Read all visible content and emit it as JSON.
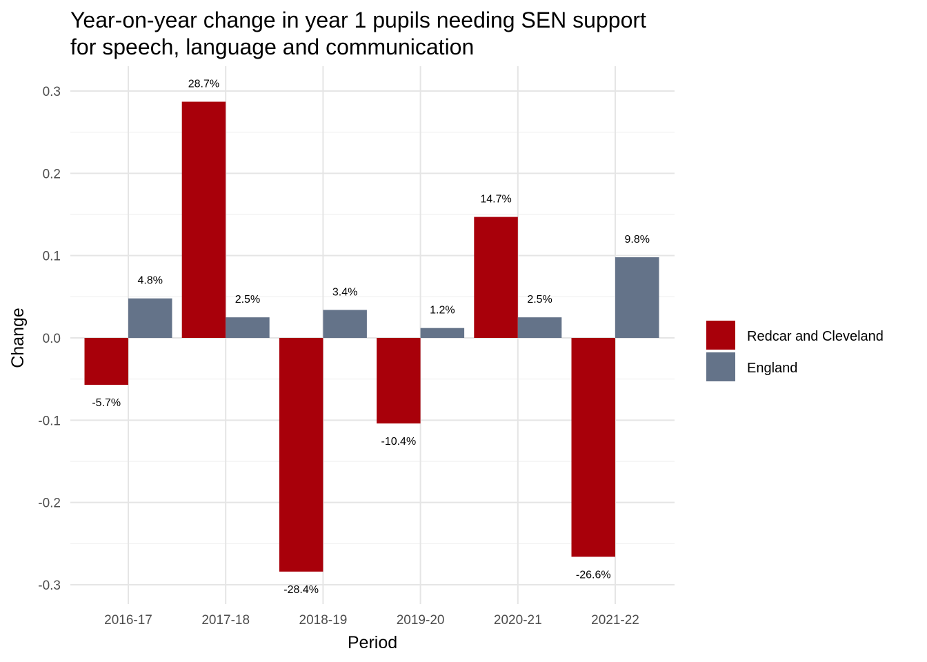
{
  "chart_data": {
    "type": "bar",
    "title_lines": [
      "Year-on-year change in year 1 pupils needing SEN support",
      "for speech, language and communication"
    ],
    "xlabel": "Period",
    "ylabel": "Change",
    "categories": [
      "2016-17",
      "2017-18",
      "2018-19",
      "2019-20",
      "2020-21",
      "2021-22"
    ],
    "series": [
      {
        "name": "Redcar and Cleveland",
        "color": "#a8000a",
        "values": [
          -0.057,
          0.287,
          -0.284,
          -0.104,
          0.147,
          -0.266
        ],
        "labels": [
          "-5.7%",
          "28.7%",
          "-28.4%",
          "-10.4%",
          "14.7%",
          "-26.6%"
        ]
      },
      {
        "name": "England",
        "color": "#647389",
        "values": [
          0.048,
          0.025,
          0.034,
          0.012,
          0.025,
          0.098
        ],
        "labels": [
          "4.8%",
          "2.5%",
          "3.4%",
          "1.2%",
          "2.5%",
          "9.8%"
        ]
      }
    ],
    "ylim": [
      -0.32,
      0.32
    ],
    "yticks": [
      -0.3,
      -0.2,
      -0.1,
      0.0,
      0.1,
      0.2,
      0.3
    ],
    "ytick_labels": [
      "-0.3",
      "-0.2",
      "-0.1",
      "0.0",
      "0.1",
      "0.2",
      "0.3"
    ],
    "grid": true,
    "legend_position": "right"
  }
}
